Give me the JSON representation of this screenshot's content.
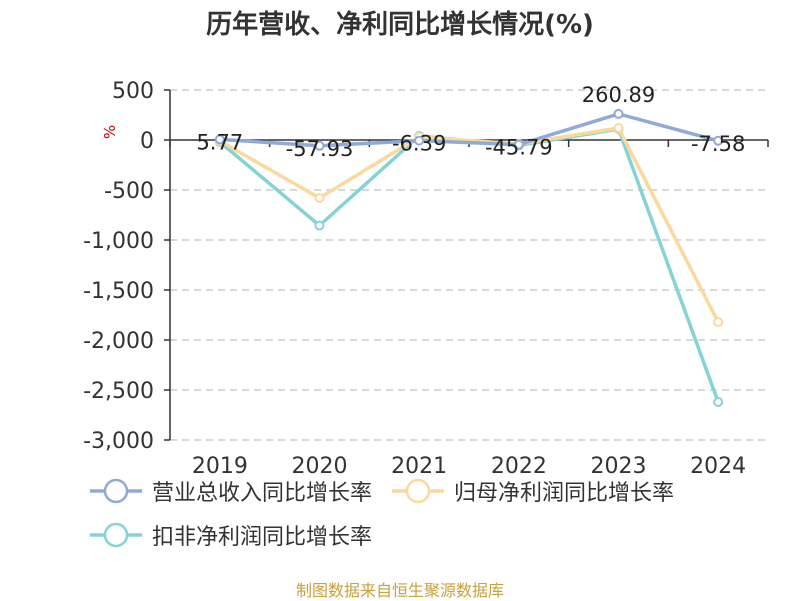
{
  "title": "历年营收、净利同比增长情况(%)",
  "unit": "%",
  "source": "制图数据来自恒生聚源数据库",
  "chart_data": {
    "type": "line",
    "title": "历年营收、净利同比增长情况(%)",
    "categories": [
      "2019",
      "2020",
      "2021",
      "2022",
      "2023",
      "2024"
    ],
    "ylim": [
      -3000,
      500
    ],
    "yticks": [
      500,
      0,
      -500,
      -1000,
      -1500,
      -2000,
      -2500,
      -3000
    ],
    "ytick_labels": [
      "500",
      "0",
      "-500",
      "-1,000",
      "-1,500",
      "-2,000",
      "-2,500",
      "-3,000"
    ],
    "grid": true,
    "legend_position": "bottom",
    "series": [
      {
        "name": "营业总收入同比增长率",
        "color": "#8faad9",
        "values": [
          5.77,
          -57.93,
          -6.39,
          -45.79,
          260.89,
          -7.58
        ],
        "labels": [
          "5.77",
          "-57.93",
          "-6.39",
          "-45.79",
          "260.89",
          "-7.58"
        ]
      },
      {
        "name": "归母净利润同比增长率",
        "color": "#fbd89b",
        "values": [
          -10,
          -580,
          30,
          -40,
          120,
          -1820
        ]
      },
      {
        "name": "扣非净利润同比增长率",
        "color": "#86d3d6",
        "values": [
          -20,
          -855,
          40,
          -55,
          110,
          -2620
        ]
      }
    ]
  }
}
